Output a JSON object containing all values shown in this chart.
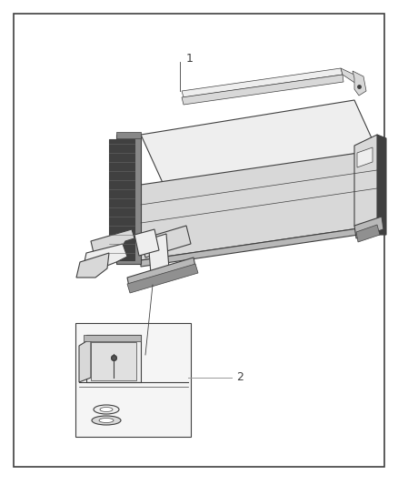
{
  "fig_width": 4.38,
  "fig_height": 5.33,
  "dpi": 100,
  "bg_color": "#ffffff",
  "border_color": "#404040",
  "border_lw": 1.2,
  "line_color": "#404040",
  "fill_light": "#eeeeee",
  "fill_mid": "#d8d8d8",
  "fill_dark": "#b8b8b8",
  "fill_black": "#404040",
  "fill_white": "#f5f5f5",
  "label_1": "1",
  "label_2": "2",
  "label_fontsize": 9,
  "leader_color": "#999999"
}
